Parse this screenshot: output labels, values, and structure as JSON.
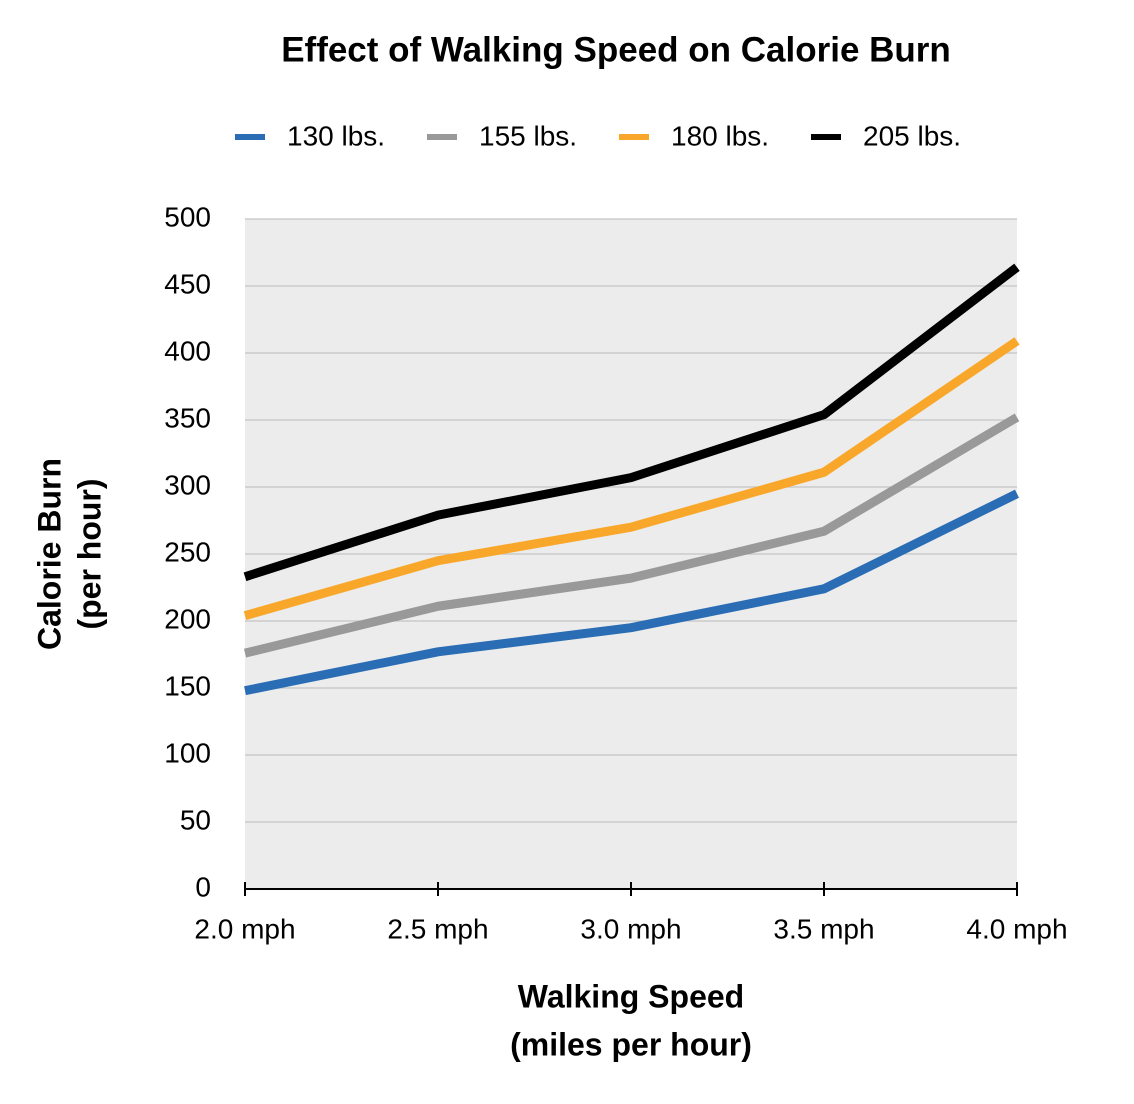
{
  "chart_data": {
    "type": "line",
    "title": "Effect of Walking Speed on Calorie Burn",
    "xlabel": [
      "Walking Speed",
      "(miles per hour)"
    ],
    "ylabel": [
      "Calorie Burn",
      "(per hour)"
    ],
    "categories": [
      "2.0 mph",
      "2.5 mph",
      "3.0 mph",
      "3.5 mph",
      "4.0 mph"
    ],
    "series": [
      {
        "name": "130 lbs.",
        "color": "#2a6db5",
        "values": [
          148,
          177,
          195,
          224,
          295
        ]
      },
      {
        "name": "155 lbs.",
        "color": "#999999",
        "values": [
          176,
          211,
          232,
          267,
          352
        ]
      },
      {
        "name": "180 lbs.",
        "color": "#f9a72b",
        "values": [
          204,
          245,
          270,
          311,
          409
        ]
      },
      {
        "name": "205 lbs.",
        "color": "#000000",
        "values": [
          233,
          279,
          307,
          354,
          464
        ]
      }
    ],
    "ylim": [
      0,
      500
    ],
    "yticks": [
      0,
      50,
      100,
      150,
      200,
      250,
      300,
      350,
      400,
      450,
      500
    ],
    "grid": true,
    "legend": "top"
  }
}
